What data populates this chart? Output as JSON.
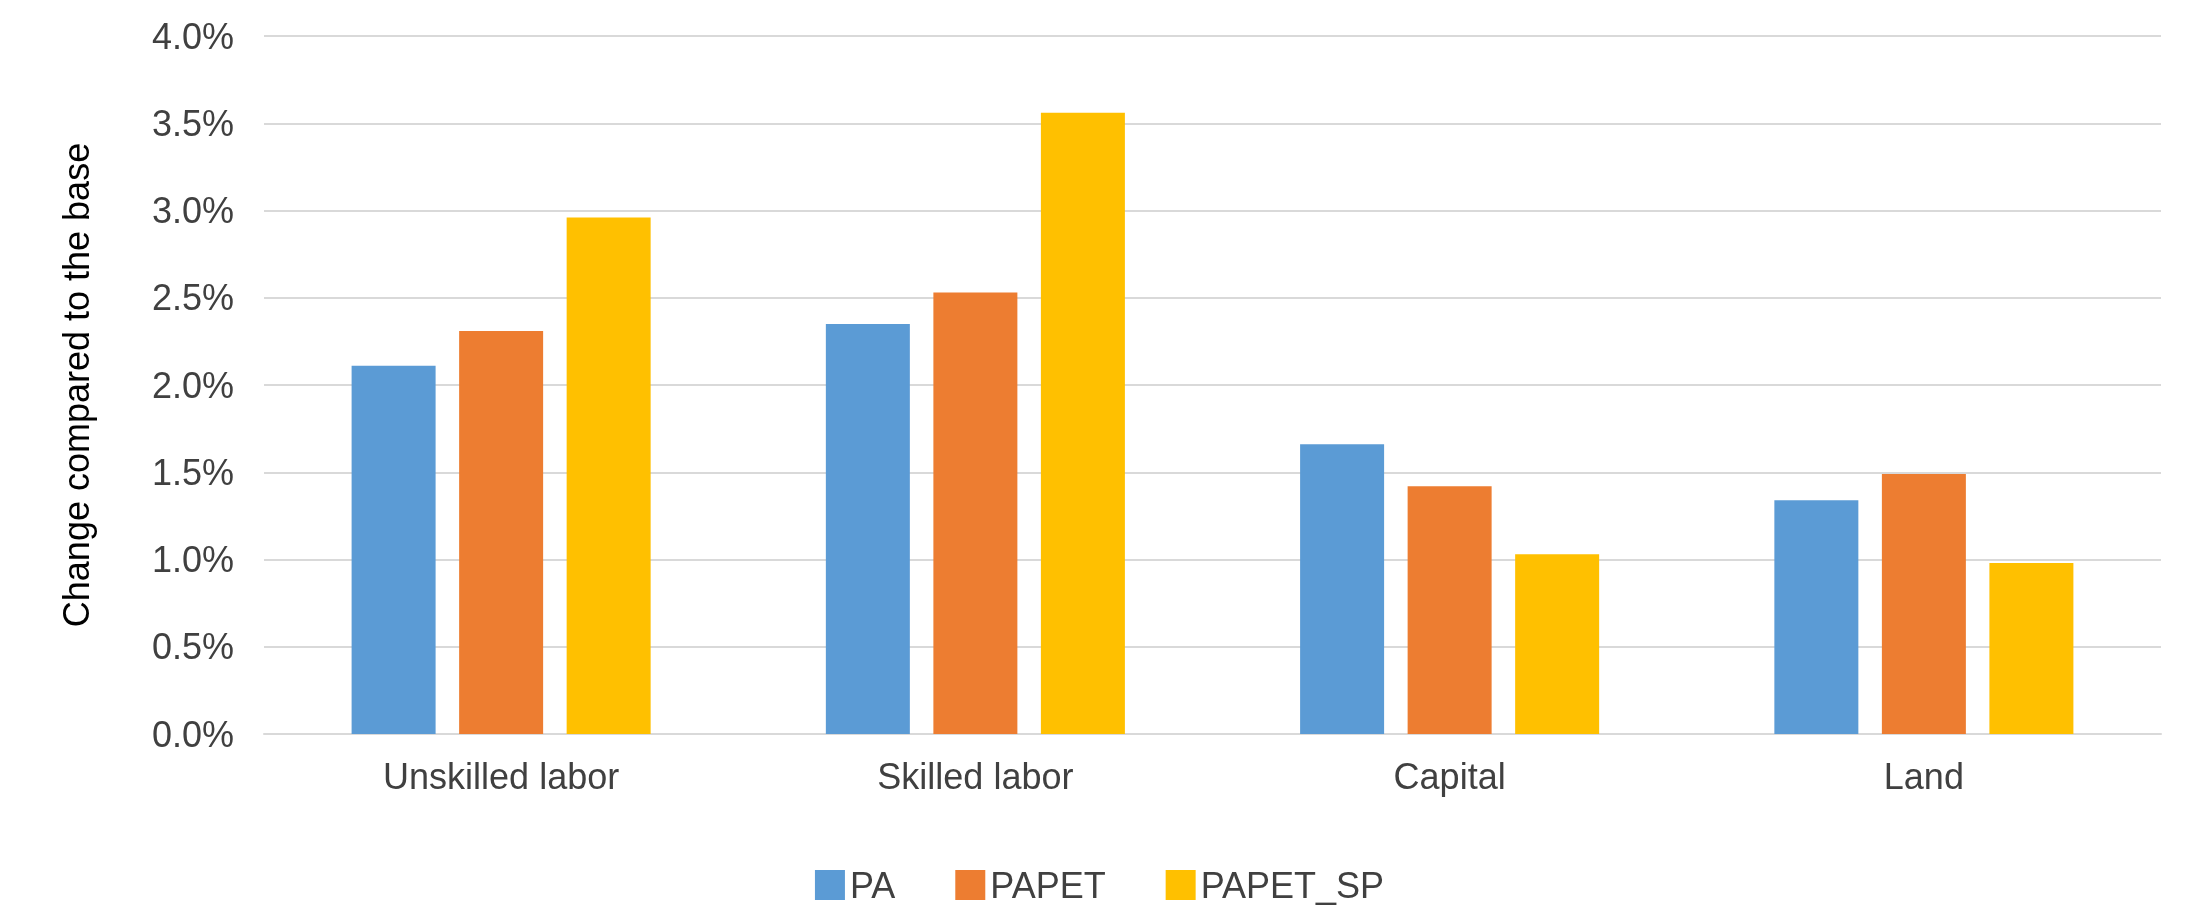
{
  "chart_data": {
    "type": "bar",
    "ylabel": "Change compared to the base",
    "categories": [
      "Unskilled labor",
      "Skilled labor",
      "Capital",
      "Land"
    ],
    "series": [
      {
        "name": "PA",
        "color": "#5b9bd5",
        "values": [
          2.11,
          2.35,
          1.66,
          1.34
        ]
      },
      {
        "name": "PAPET",
        "color": "#ed7d31",
        "values": [
          2.31,
          2.53,
          1.42,
          1.49
        ]
      },
      {
        "name": "PAPET_SP",
        "color": "#ffc000",
        "values": [
          2.96,
          3.56,
          1.03,
          0.98
        ]
      }
    ],
    "ylim": [
      0,
      4
    ],
    "yticks": [
      {
        "value": 0,
        "label": "0.0%"
      },
      {
        "value": 0.5,
        "label": "0.5%"
      },
      {
        "value": 1,
        "label": "1.0%"
      },
      {
        "value": 1.5,
        "label": "1.5%"
      },
      {
        "value": 2,
        "label": "2.0%"
      },
      {
        "value": 2.5,
        "label": "2.5%"
      },
      {
        "value": 3,
        "label": "3.0%"
      },
      {
        "value": 3.5,
        "label": "3.5%"
      },
      {
        "value": 4,
        "label": "4.0%"
      }
    ],
    "grid": "y",
    "legend": "bottom"
  }
}
